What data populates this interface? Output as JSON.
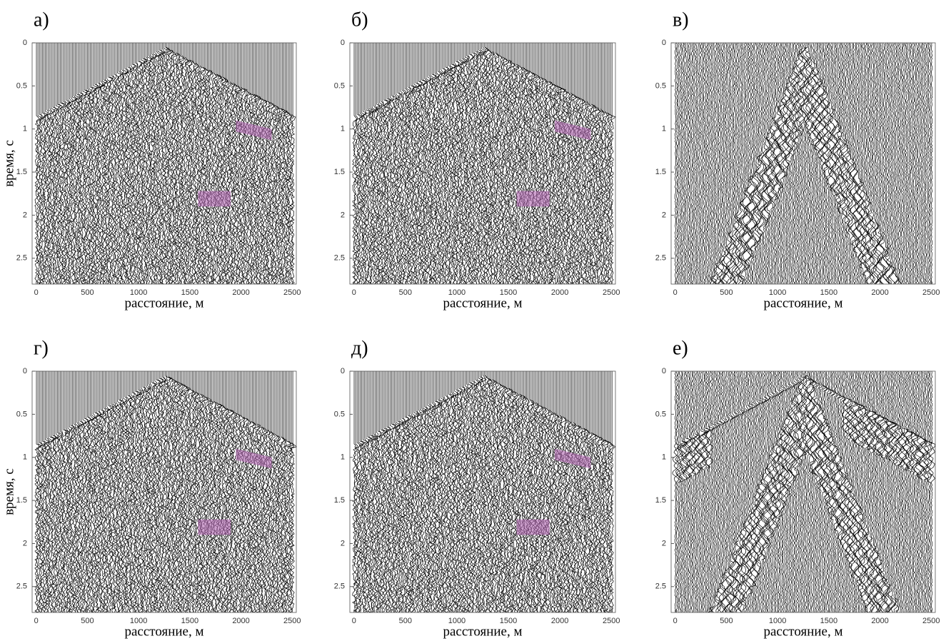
{
  "chart_data": [
    {
      "type": "seismic",
      "panel_label": "а)",
      "xlabel": "расстояние, м",
      "ylabel": "время, с",
      "xlim": [
        -40,
        2540
      ],
      "ylim": [
        0,
        2.8
      ],
      "xticks": [
        0,
        500,
        1000,
        1500,
        2000,
        2500
      ],
      "yticks": [
        0,
        0.5,
        1,
        1.5,
        2,
        2.5
      ]
    },
    {
      "type": "seismic",
      "panel_label": "б)",
      "xlabel": "расстояние, м",
      "xlim": [
        -40,
        2540
      ],
      "ylim": [
        0,
        2.8
      ],
      "xticks": [
        0,
        500,
        1000,
        1500,
        2000,
        2500
      ],
      "yticks": [
        0,
        0.5,
        1,
        1.5,
        2,
        2.5
      ]
    },
    {
      "type": "seismic",
      "panel_label": "в)",
      "xlabel": "расстояние, м",
      "xlim": [
        -40,
        2540
      ],
      "ylim": [
        0,
        2.8
      ],
      "xticks": [
        0,
        500,
        1000,
        1500,
        2000,
        2500
      ],
      "yticks": [
        0,
        0.5,
        1,
        1.5,
        2,
        2.5
      ]
    },
    {
      "type": "seismic",
      "panel_label": "г)",
      "xlabel": "расстояние, м",
      "ylabel": "время, с",
      "xlim": [
        -40,
        2540
      ],
      "ylim": [
        0,
        2.8
      ],
      "xticks": [
        0,
        500,
        1000,
        1500,
        2000,
        2500
      ],
      "yticks": [
        0,
        0.5,
        1,
        1.5,
        2,
        2.5
      ]
    },
    {
      "type": "seismic",
      "panel_label": "д)",
      "xlabel": "расстояние, м",
      "xlim": [
        -40,
        2540
      ],
      "ylim": [
        0,
        2.8
      ],
      "xticks": [
        0,
        500,
        1000,
        1500,
        2000,
        2500
      ],
      "yticks": [
        0,
        0.5,
        1,
        1.5,
        2,
        2.5
      ]
    },
    {
      "type": "seismic",
      "panel_label": "е)",
      "xlabel": "расстояние, м",
      "xlim": [
        -40,
        2540
      ],
      "ylim": [
        0,
        2.8
      ],
      "xticks": [
        0,
        500,
        1000,
        1500,
        2000,
        2500
      ],
      "yticks": [
        0,
        0.5,
        1,
        1.5,
        2,
        2.5
      ]
    }
  ]
}
